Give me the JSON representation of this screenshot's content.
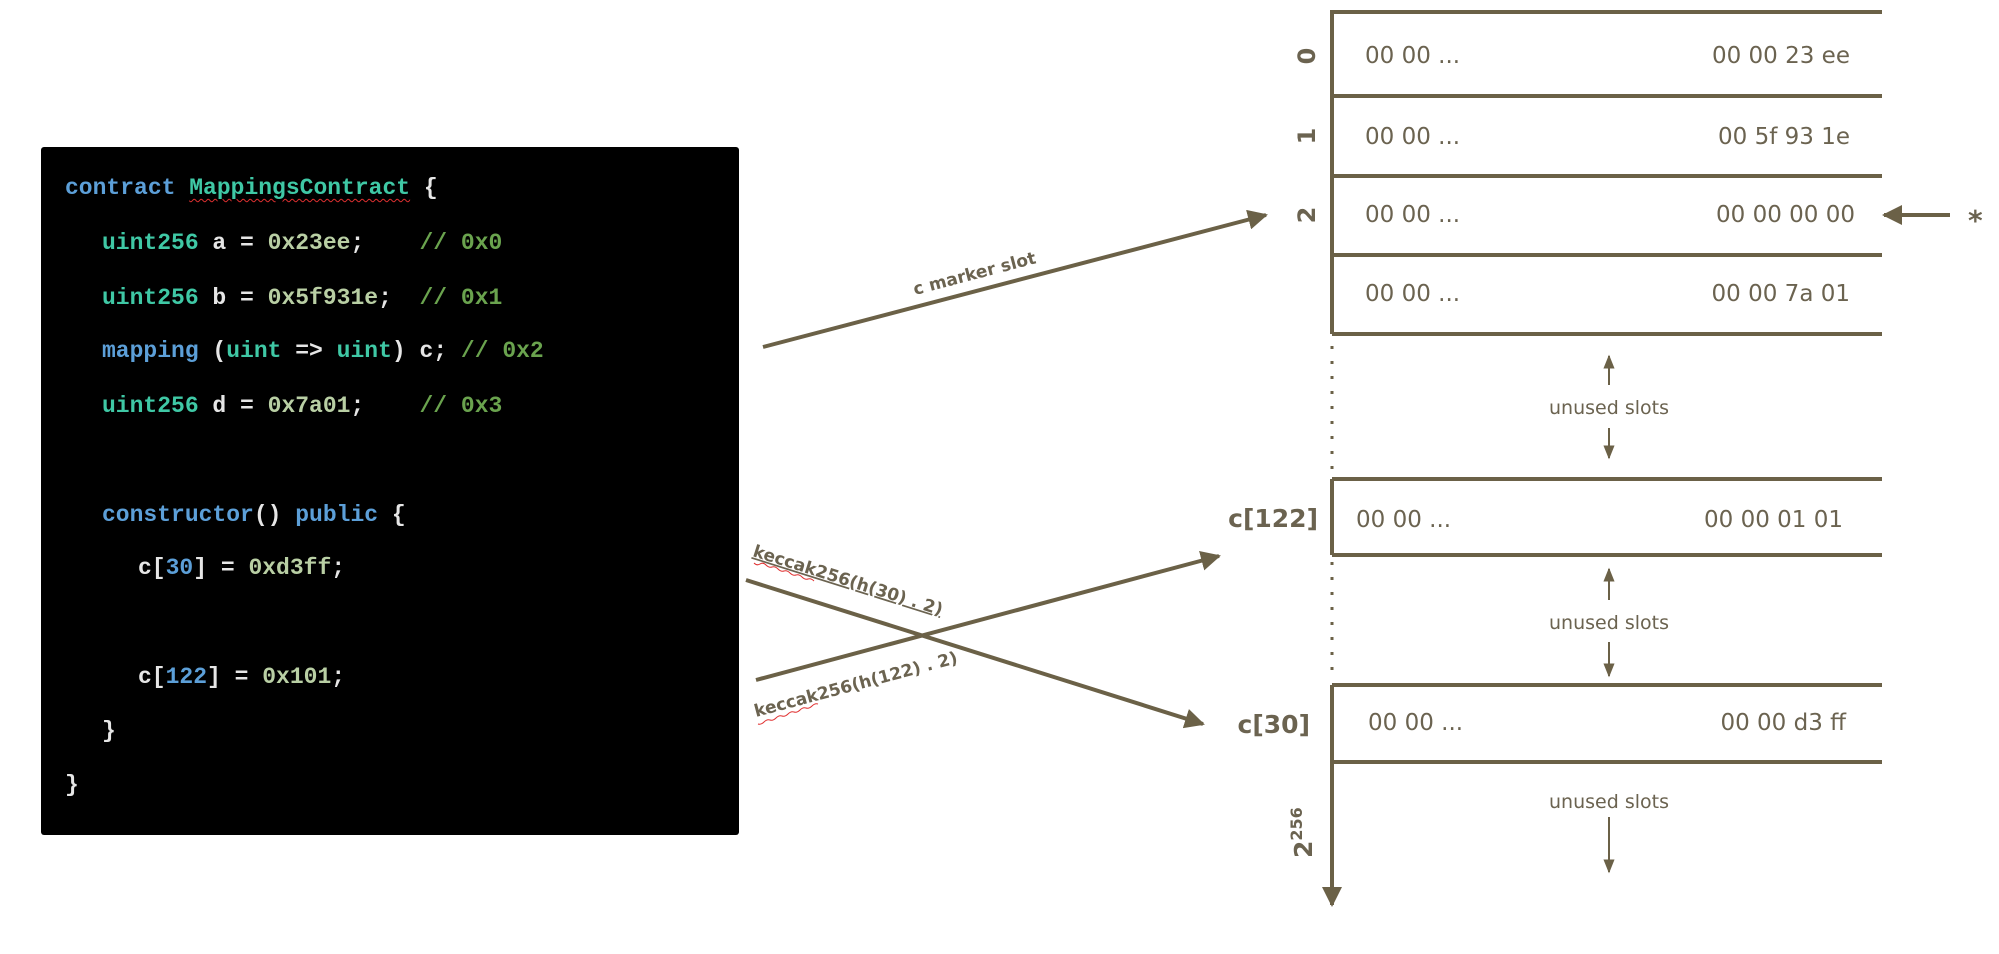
{
  "code": {
    "lines": [
      {
        "indent": 0,
        "tokens": [
          {
            "t": "contract ",
            "c": "kw"
          },
          {
            "t": "MappingsContract",
            "c": "ty squig"
          },
          {
            "t": " {",
            "c": "pl"
          }
        ]
      },
      {
        "indent": 1,
        "tokens": [
          {
            "t": "uint256",
            "c": "ty"
          },
          {
            "t": " a = ",
            "c": "pl"
          },
          {
            "t": "0x23ee",
            "c": "num"
          },
          {
            "t": ";    ",
            "c": "pl"
          },
          {
            "t": "// 0x0",
            "c": "cm"
          }
        ]
      },
      {
        "indent": 1,
        "tokens": [
          {
            "t": "uint256",
            "c": "ty"
          },
          {
            "t": " b = ",
            "c": "pl"
          },
          {
            "t": "0x5f931e",
            "c": "num"
          },
          {
            "t": ";  ",
            "c": "pl"
          },
          {
            "t": "// 0x1",
            "c": "cm"
          }
        ]
      },
      {
        "indent": 1,
        "tokens": [
          {
            "t": "mapping",
            "c": "kw"
          },
          {
            "t": " (",
            "c": "pl"
          },
          {
            "t": "uint",
            "c": "ty"
          },
          {
            "t": " => ",
            "c": "pl"
          },
          {
            "t": "uint",
            "c": "ty"
          },
          {
            "t": ") c; ",
            "c": "pl"
          },
          {
            "t": "// 0x2",
            "c": "cm"
          }
        ]
      },
      {
        "indent": 1,
        "tokens": [
          {
            "t": "uint256",
            "c": "ty"
          },
          {
            "t": " d = ",
            "c": "pl"
          },
          {
            "t": "0x7a01",
            "c": "num"
          },
          {
            "t": ";    ",
            "c": "pl"
          },
          {
            "t": "// 0x3",
            "c": "cm"
          }
        ]
      },
      {
        "indent": 1,
        "tokens": [
          {
            "t": "constructor",
            "c": "kw"
          },
          {
            "t": "() ",
            "c": "pl"
          },
          {
            "t": "public",
            "c": "kw"
          },
          {
            "t": " {",
            "c": "pl"
          }
        ]
      },
      {
        "indent": 2,
        "tokens": [
          {
            "t": "c[",
            "c": "pl"
          },
          {
            "t": "30",
            "c": "nb"
          },
          {
            "t": "] = ",
            "c": "pl"
          },
          {
            "t": "0xd3ff",
            "c": "num"
          },
          {
            "t": ";",
            "c": "pl"
          }
        ]
      },
      {
        "indent": 2,
        "tokens": [
          {
            "t": "c[",
            "c": "pl"
          },
          {
            "t": "122",
            "c": "nb"
          },
          {
            "t": "] = ",
            "c": "pl"
          },
          {
            "t": "0x101",
            "c": "num"
          },
          {
            "t": ";",
            "c": "pl"
          }
        ]
      },
      {
        "indent": 1,
        "tokens": [
          {
            "t": "}",
            "c": "pl"
          }
        ]
      },
      {
        "indent": 0,
        "tokens": [
          {
            "t": "}",
            "c": "pl"
          }
        ]
      }
    ]
  },
  "storage": {
    "slots": [
      {
        "index": "0",
        "left": "00 00 ...",
        "right": "00 00 23 ee"
      },
      {
        "index": "1",
        "left": "00 00 ...",
        "right": "00 5f 93 1e"
      },
      {
        "index": "2",
        "left": "00 00 ...",
        "right": "00 00 00 00"
      },
      {
        "index": "",
        "left": "00 00 ...",
        "right": "00 00 7a 01"
      }
    ],
    "c122": {
      "label": "c[122]",
      "left": "00 00 ...",
      "right": "00 00 01 01"
    },
    "c30": {
      "label": "c[30]",
      "left": "00 00 ...",
      "right": "00 00 d3 ff"
    },
    "unused_label": "unused slots",
    "end_label_base": "2",
    "end_label_exp": "256",
    "marker_star": "*"
  },
  "arrows": {
    "c_marker": "c marker slot",
    "k30": "keccak256(h(30) . 2)",
    "k122": "keccak256(h(122) . 2)"
  },
  "colors": {
    "diagram": "#6b6147",
    "code_bg": "#000000"
  }
}
